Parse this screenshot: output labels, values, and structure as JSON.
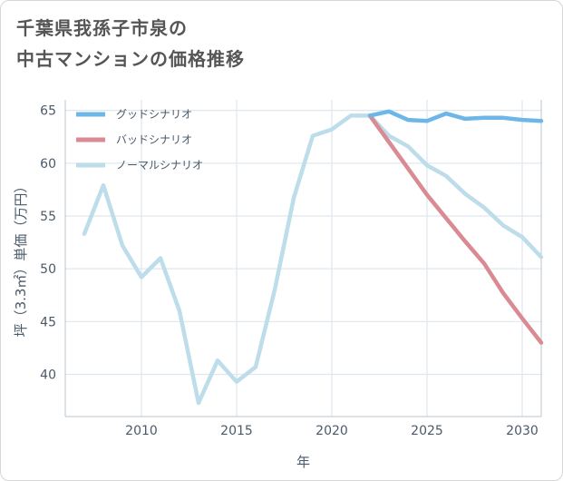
{
  "title_line1": "千葉県我孫子市泉の",
  "title_line2": "中古マンションの価格推移",
  "chart_data": {
    "type": "line",
    "title": "千葉県我孫子市泉の中古マンションの価格推移",
    "xlabel": "年",
    "ylabel": "坪（3.3㎡）単価（万円）",
    "xlim": [
      2006,
      2031
    ],
    "ylim": [
      36,
      66
    ],
    "xticks": [
      2010,
      2015,
      2020,
      2025,
      2030
    ],
    "yticks": [
      40,
      45,
      50,
      55,
      60,
      65
    ],
    "grid": true,
    "legend_position": "top-left",
    "series": [
      {
        "name": "グッドシナリオ",
        "color": "#6cb6e8",
        "x": [
          2022,
          2023,
          2024,
          2025,
          2026,
          2027,
          2028,
          2029,
          2030,
          2031
        ],
        "y": [
          64.5,
          64.9,
          64.1,
          64.0,
          64.7,
          64.2,
          64.3,
          64.3,
          64.1,
          64.0
        ]
      },
      {
        "name": "バッドシナリオ",
        "color": "#d98a92",
        "x": [
          2022,
          2023,
          2024,
          2025,
          2026,
          2027,
          2028,
          2029,
          2030,
          2031
        ],
        "y": [
          64.5,
          62.0,
          59.5,
          57.0,
          54.8,
          52.6,
          50.5,
          47.7,
          45.3,
          43.0
        ]
      },
      {
        "name": "ノーマルシナリオ",
        "color": "#bcdde9",
        "x": [
          2007,
          2008,
          2009,
          2010,
          2011,
          2012,
          2013,
          2014,
          2015,
          2016,
          2017,
          2018,
          2019,
          2020,
          2021,
          2022,
          2023,
          2024,
          2025,
          2026,
          2027,
          2028,
          2029,
          2030,
          2031
        ],
        "y": [
          53.3,
          57.9,
          52.2,
          49.2,
          51.0,
          46.0,
          37.3,
          41.3,
          39.3,
          40.7,
          48.0,
          56.7,
          62.6,
          63.2,
          64.5,
          64.5,
          62.6,
          61.6,
          59.8,
          58.8,
          57.1,
          55.8,
          54.1,
          53.0,
          51.1
        ]
      }
    ]
  }
}
